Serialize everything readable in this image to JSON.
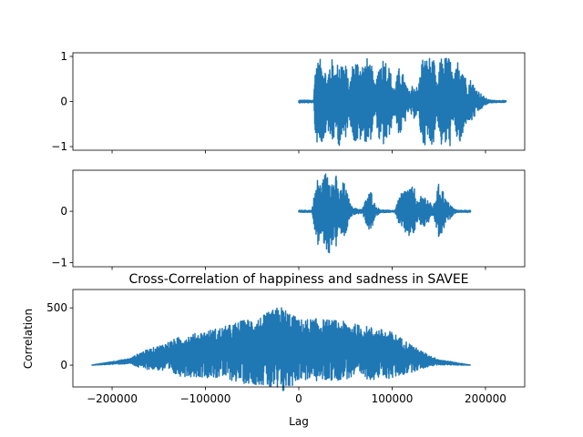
{
  "chart_data": [
    {
      "type": "line",
      "title": "",
      "xlabel": "",
      "ylabel": "",
      "xlim": [
        -242000,
        242000
      ],
      "ylim": [
        -1.08,
        1.08
      ],
      "yticks": [
        -1,
        0,
        1
      ],
      "ytick_labels": [
        "−1",
        "0",
        "1"
      ],
      "xtick_labels_visible": false,
      "series": [
        {
          "color": "#1f77b4",
          "x_start": 0,
          "x_end": 222000,
          "envelope": [
            [
              0,
              0.03
            ],
            [
              16000,
              0.03
            ],
            [
              18000,
              1.0
            ],
            [
              20000,
              0.9
            ],
            [
              24000,
              0.95
            ],
            [
              28000,
              0.85
            ],
            [
              30000,
              0.4
            ],
            [
              33000,
              0.9
            ],
            [
              36000,
              0.95
            ],
            [
              40000,
              0.7
            ],
            [
              43000,
              1.0
            ],
            [
              47000,
              0.9
            ],
            [
              51000,
              0.8
            ],
            [
              54000,
              0.3
            ],
            [
              57000,
              0.8
            ],
            [
              61000,
              0.95
            ],
            [
              65000,
              0.9
            ],
            [
              70000,
              0.85
            ],
            [
              74000,
              1.0
            ],
            [
              78000,
              0.8
            ],
            [
              82000,
              0.3
            ],
            [
              86000,
              0.9
            ],
            [
              90000,
              1.0
            ],
            [
              94000,
              0.95
            ],
            [
              98000,
              0.7
            ],
            [
              102000,
              0.3
            ],
            [
              108000,
              0.8
            ],
            [
              112000,
              0.6
            ],
            [
              118000,
              0.2
            ],
            [
              122000,
              0.4
            ],
            [
              128000,
              0.3
            ],
            [
              132000,
              1.0
            ],
            [
              136000,
              0.95
            ],
            [
              140000,
              1.0
            ],
            [
              145000,
              0.9
            ],
            [
              148000,
              0.3
            ],
            [
              152000,
              1.0
            ],
            [
              157000,
              1.0
            ],
            [
              162000,
              1.0
            ],
            [
              166000,
              0.5
            ],
            [
              171000,
              1.0
            ],
            [
              175000,
              0.95
            ],
            [
              180000,
              0.4
            ],
            [
              184000,
              0.5
            ],
            [
              190000,
              0.3
            ],
            [
              194000,
              0.2
            ],
            [
              200000,
              0.08
            ],
            [
              205000,
              0.03
            ],
            [
              222000,
              0.02
            ]
          ]
        }
      ]
    },
    {
      "type": "line",
      "title": "",
      "xlabel": "",
      "ylabel": "",
      "xlim": [
        -242000,
        242000
      ],
      "ylim": [
        -1.08,
        0.8
      ],
      "yticks": [
        -1,
        0
      ],
      "ytick_labels": [
        "−1",
        "0"
      ],
      "xtick_labels_visible": false,
      "series": [
        {
          "color": "#1f77b4",
          "x_start": 0,
          "x_end": 184000,
          "envelope": [
            [
              0,
              0.02
            ],
            [
              14000,
              0.02
            ],
            [
              18000,
              0.5
            ],
            [
              21000,
              0.7
            ],
            [
              24000,
              0.5
            ],
            [
              28000,
              0.75
            ],
            [
              32000,
              0.9
            ],
            [
              36000,
              0.6
            ],
            [
              40000,
              0.7
            ],
            [
              43000,
              0.35
            ],
            [
              48000,
              0.6
            ],
            [
              52000,
              0.35
            ],
            [
              56000,
              0.1
            ],
            [
              62000,
              0.05
            ],
            [
              68000,
              0.04
            ],
            [
              74000,
              0.35
            ],
            [
              78000,
              0.4
            ],
            [
              82000,
              0.1
            ],
            [
              88000,
              0.03
            ],
            [
              96000,
              0.02
            ],
            [
              103000,
              0.02
            ],
            [
              108000,
              0.3
            ],
            [
              112000,
              0.4
            ],
            [
              118000,
              0.5
            ],
            [
              124000,
              0.45
            ],
            [
              128000,
              0.15
            ],
            [
              132000,
              0.35
            ],
            [
              138000,
              0.25
            ],
            [
              144000,
              0.08
            ],
            [
              150000,
              0.55
            ],
            [
              154000,
              0.45
            ],
            [
              158000,
              0.2
            ],
            [
              162000,
              0.15
            ],
            [
              166000,
              0.05
            ],
            [
              170000,
              0.02
            ],
            [
              184000,
              0.02
            ]
          ]
        }
      ]
    },
    {
      "type": "line",
      "title": "Cross-Correlation of happiness and sadness in SAVEE",
      "xlabel": "Lag",
      "ylabel": "Correlation",
      "xlim": [
        -242000,
        242000
      ],
      "ylim": [
        -190,
        660
      ],
      "yticks": [
        0,
        500
      ],
      "ytick_labels": [
        "0",
        "500"
      ],
      "xticks": [
        -200000,
        -100000,
        0,
        100000,
        200000
      ],
      "xtick_labels": [
        "−200000",
        "−100000",
        "0",
        "100000",
        "200000"
      ],
      "series": [
        {
          "color": "#1f77b4",
          "x_start": -222000,
          "x_end": 184000,
          "baseline": [
            [
              -222000,
              0
            ],
            [
              -180000,
              40
            ],
            [
              -150000,
              80
            ],
            [
              -100000,
              130
            ],
            [
              -50000,
              170
            ],
            [
              -20000,
              190
            ],
            [
              0,
              180
            ],
            [
              50000,
              170
            ],
            [
              100000,
              120
            ],
            [
              130000,
              60
            ],
            [
              150000,
              30
            ],
            [
              184000,
              0
            ]
          ],
          "envelope": [
            [
              -222000,
              0
            ],
            [
              -180000,
              20
            ],
            [
              -170000,
              60
            ],
            [
              -150000,
              90
            ],
            [
              -130000,
              140
            ],
            [
              -100000,
              170
            ],
            [
              -80000,
              190
            ],
            [
              -60000,
              230
            ],
            [
              -40000,
              250
            ],
            [
              -20000,
              330
            ],
            [
              -10000,
              280
            ],
            [
              0,
              220
            ],
            [
              20000,
              230
            ],
            [
              40000,
              220
            ],
            [
              60000,
              200
            ],
            [
              80000,
              190
            ],
            [
              100000,
              170
            ],
            [
              115000,
              120
            ],
            [
              130000,
              70
            ],
            [
              140000,
              40
            ],
            [
              150000,
              20
            ],
            [
              184000,
              0
            ]
          ]
        }
      ]
    }
  ]
}
